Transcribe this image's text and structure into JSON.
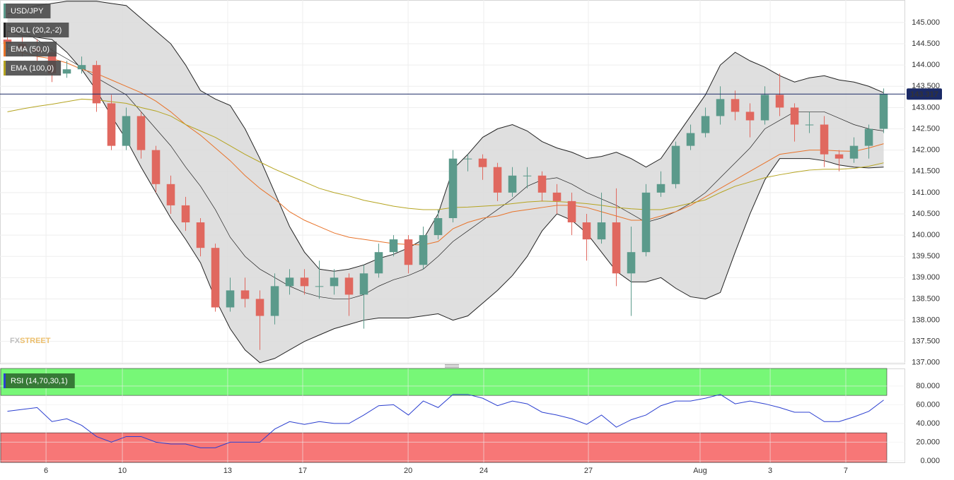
{
  "chart_data": [
    {
      "type": "candlestick",
      "name": "USD/JPY",
      "up_color": "#5b9a8b",
      "down_color": "#e0685f",
      "x": [
        0,
        1,
        2,
        3,
        4,
        5,
        6,
        7,
        8,
        9,
        10,
        11,
        12,
        13,
        14,
        15,
        16,
        17,
        18,
        19,
        20,
        21,
        22,
        23,
        24,
        25,
        26,
        27,
        28,
        29,
        30,
        31,
        32,
        33,
        34,
        35,
        36,
        37,
        38,
        39,
        40,
        41,
        42,
        43,
        44,
        45,
        46,
        47,
        48,
        49,
        50,
        51,
        52,
        53,
        54,
        55,
        56,
        57,
        58,
        59
      ],
      "open": [
        144.6,
        144.5,
        144.4,
        144.3,
        143.8,
        143.9,
        144.0,
        143.1,
        142.1,
        142.8,
        142.0,
        141.2,
        140.7,
        140.3,
        139.7,
        138.3,
        138.7,
        138.5,
        138.1,
        138.8,
        139.0,
        138.8,
        138.8,
        139.0,
        138.6,
        139.1,
        139.6,
        139.9,
        139.3,
        140.0,
        140.4,
        141.8,
        141.8,
        141.6,
        141.0,
        141.4,
        141.4,
        141.0,
        140.8,
        140.3,
        139.9,
        140.3,
        139.1,
        139.6,
        141.0,
        141.2,
        142.1,
        142.4,
        142.8,
        143.2,
        142.9,
        142.7,
        143.3,
        143.0,
        142.6,
        142.6,
        141.9,
        141.8,
        142.1,
        142.5
      ],
      "high": [
        144.8,
        144.7,
        144.6,
        144.4,
        144.1,
        144.2,
        144.1,
        143.3,
        143.0,
        142.9,
        142.1,
        141.4,
        140.9,
        140.4,
        139.8,
        139.0,
        139.0,
        138.7,
        139.1,
        139.2,
        139.2,
        139.4,
        139.2,
        139.1,
        139.3,
        139.8,
        140.0,
        140.0,
        140.2,
        140.6,
        142.0,
        141.9,
        141.9,
        141.7,
        141.6,
        141.6,
        141.5,
        141.2,
        141.0,
        140.5,
        141.0,
        141.1,
        140.2,
        141.2,
        141.5,
        142.2,
        142.6,
        143.0,
        143.5,
        143.4,
        143.1,
        143.5,
        143.8,
        143.1,
        142.9,
        142.8,
        142.0,
        142.3,
        142.6,
        143.45
      ],
      "low": [
        144.3,
        144.2,
        144.1,
        143.6,
        143.7,
        143.8,
        142.9,
        142.0,
        142.0,
        141.8,
        141.0,
        140.5,
        140.1,
        139.5,
        138.2,
        138.2,
        138.3,
        137.3,
        137.9,
        138.6,
        138.6,
        138.5,
        138.6,
        138.1,
        137.8,
        139.0,
        139.5,
        139.1,
        139.2,
        139.9,
        140.3,
        141.5,
        141.3,
        140.8,
        140.9,
        141.1,
        140.8,
        140.5,
        140.0,
        139.4,
        139.8,
        138.8,
        138.1,
        139.5,
        140.9,
        141.1,
        142.0,
        142.3,
        142.6,
        142.7,
        142.3,
        142.6,
        142.8,
        142.2,
        142.4,
        141.6,
        141.5,
        141.7,
        141.8,
        142.4
      ],
      "close": [
        144.5,
        144.4,
        144.3,
        143.8,
        143.9,
        144.0,
        143.1,
        142.1,
        142.8,
        142.0,
        141.2,
        140.7,
        140.3,
        139.7,
        138.3,
        138.7,
        138.5,
        138.1,
        138.8,
        139.0,
        138.8,
        138.8,
        139.0,
        138.6,
        139.1,
        139.6,
        139.9,
        139.3,
        140.0,
        140.4,
        141.8,
        141.8,
        141.6,
        141.0,
        141.4,
        141.4,
        141.0,
        140.8,
        140.3,
        139.9,
        140.3,
        139.1,
        139.6,
        141.0,
        141.2,
        142.1,
        142.4,
        142.8,
        143.2,
        142.9,
        142.7,
        143.3,
        143.0,
        142.6,
        142.6,
        141.9,
        141.8,
        142.1,
        142.5,
        143.317
      ],
      "indicators": [
        {
          "name": "BOLL (20,2,-2)",
          "color": "#222222",
          "fill": "#d9d9d9",
          "upper": [
            145.2,
            145.3,
            145.4,
            145.45,
            145.5,
            145.5,
            145.5,
            145.45,
            145.4,
            145.1,
            144.8,
            144.5,
            144.0,
            143.4,
            143.2,
            143.05,
            142.5,
            141.8,
            141.0,
            140.2,
            139.6,
            139.2,
            139.15,
            139.2,
            139.3,
            139.45,
            139.55,
            139.7,
            139.9,
            140.5,
            141.55,
            141.9,
            142.3,
            142.5,
            142.6,
            142.45,
            142.2,
            142.05,
            141.95,
            141.8,
            141.85,
            141.95,
            141.8,
            141.6,
            141.8,
            142.3,
            142.8,
            143.3,
            144.0,
            144.3,
            144.1,
            143.95,
            143.75,
            143.6,
            143.7,
            143.75,
            143.65,
            143.6,
            143.5,
            143.35
          ],
          "middle": [
            144.95,
            144.8,
            144.6,
            144.35,
            144.15,
            143.95,
            143.7,
            143.5,
            143.3,
            142.9,
            142.5,
            142.1,
            141.6,
            141.15,
            140.6,
            139.95,
            139.5,
            139.2,
            139.0,
            138.8,
            138.65,
            138.55,
            138.5,
            138.5,
            138.6,
            138.8,
            138.95,
            139.05,
            139.2,
            139.5,
            139.85,
            140.1,
            140.35,
            140.6,
            140.85,
            141.15,
            141.3,
            141.35,
            141.2,
            141.0,
            140.85,
            140.7,
            140.5,
            140.3,
            140.4,
            140.55,
            140.75,
            141.0,
            141.35,
            141.7,
            142.05,
            142.5,
            142.7,
            142.9,
            142.9,
            142.9,
            142.75,
            142.6,
            142.5,
            142.45
          ],
          "lower": [
            144.8,
            144.7,
            144.65,
            144.6,
            144.3,
            143.9,
            143.4,
            142.8,
            142.25,
            141.6,
            141.0,
            140.4,
            139.9,
            139.35,
            138.5,
            137.8,
            137.3,
            137.0,
            137.1,
            137.3,
            137.5,
            137.65,
            137.8,
            137.9,
            138.0,
            138.05,
            138.05,
            138.05,
            138.1,
            138.15,
            138.0,
            138.1,
            138.4,
            138.7,
            139.05,
            139.5,
            140.1,
            140.5,
            140.35,
            140.05,
            139.6,
            139.15,
            138.9,
            138.9,
            139.0,
            138.75,
            138.55,
            138.5,
            138.65,
            139.6,
            140.5,
            141.3,
            141.8,
            141.8,
            141.8,
            141.75,
            141.65,
            141.6,
            141.58,
            141.6
          ]
        },
        {
          "name": "EMA (50,0)",
          "color": "#e8732a",
          "values": [
            144.4,
            144.3,
            144.2,
            144.15,
            144.05,
            143.9,
            143.8,
            143.65,
            143.5,
            143.35,
            143.15,
            142.9,
            142.6,
            142.35,
            142.05,
            141.75,
            141.4,
            141.1,
            140.85,
            140.55,
            140.35,
            140.2,
            140.05,
            139.95,
            139.9,
            139.85,
            139.8,
            139.78,
            139.77,
            139.85,
            140.15,
            140.3,
            140.4,
            140.45,
            140.55,
            140.6,
            140.65,
            140.7,
            140.7,
            140.65,
            140.55,
            140.45,
            140.35,
            140.35,
            140.45,
            140.55,
            140.7,
            140.9,
            141.1,
            141.3,
            141.5,
            141.7,
            141.9,
            141.95,
            142.0,
            142.0,
            141.98,
            141.97,
            142.05,
            142.15
          ]
        },
        {
          "name": "EMA (100,0)",
          "color": "#b5a420",
          "values": [
            142.9,
            142.97,
            143.03,
            143.08,
            143.14,
            143.2,
            143.18,
            143.14,
            143.1,
            143.0,
            142.92,
            142.8,
            142.6,
            142.45,
            142.3,
            142.1,
            141.9,
            141.72,
            141.55,
            141.4,
            141.25,
            141.1,
            141.0,
            140.92,
            140.82,
            140.75,
            140.68,
            140.63,
            140.6,
            140.6,
            140.65,
            140.66,
            140.68,
            140.7,
            140.74,
            140.78,
            140.8,
            140.79,
            140.77,
            140.74,
            140.7,
            140.65,
            140.62,
            140.6,
            140.6,
            140.67,
            140.75,
            140.83,
            141.0,
            141.15,
            141.25,
            141.35,
            141.42,
            141.48,
            141.53,
            141.55,
            141.55,
            141.57,
            141.62,
            141.7
          ]
        }
      ],
      "xlim": [
        -0.5,
        60.45
      ],
      "ylim": [
        136.98,
        145.53
      ],
      "yticks": [
        {
          "value": 137,
          "label": "137.000"
        },
        {
          "value": 137.5,
          "label": "137.500"
        },
        {
          "value": 138,
          "label": "138.000"
        },
        {
          "value": 138.5,
          "label": "138.500"
        },
        {
          "value": 139,
          "label": "139.000"
        },
        {
          "value": 139.5,
          "label": "139.500"
        },
        {
          "value": 140,
          "label": "140.000"
        },
        {
          "value": 140.5,
          "label": "140.500"
        },
        {
          "value": 141,
          "label": "141.000"
        },
        {
          "value": 141.5,
          "label": "141.500"
        },
        {
          "value": 142,
          "label": "142.000"
        },
        {
          "value": 142.5,
          "label": "142.500"
        },
        {
          "value": 143,
          "label": "143.000"
        },
        {
          "value": 143.5,
          "label": "143.500"
        },
        {
          "value": 144,
          "label": "144.000"
        },
        {
          "value": 144.5,
          "label": "144.500"
        },
        {
          "value": 145,
          "label": "145.000"
        }
      ],
      "grid": true,
      "watermark": [
        "FX",
        "STREET"
      ]
    },
    {
      "type": "line",
      "series": [
        {
          "name": "RSI (14,70,30,1)",
          "color": "#2b3fd0",
          "values": [
            53,
            55,
            57,
            42,
            45,
            38,
            26,
            20,
            26,
            26,
            20,
            18,
            18,
            14,
            14,
            20,
            20,
            20,
            34,
            42,
            39,
            42,
            40,
            40,
            49,
            59,
            60,
            49,
            64,
            57,
            71,
            71,
            67,
            59,
            64,
            61,
            52,
            49,
            45,
            39,
            49,
            36,
            44,
            49,
            59,
            64,
            64,
            67,
            71,
            61,
            64,
            61,
            57,
            52,
            52,
            42,
            42,
            47,
            53,
            65
          ]
        }
      ],
      "zones": [
        {
          "from": 70,
          "color": "#77f777"
        },
        {
          "to": 30,
          "color": "#f77777"
        }
      ],
      "xlim": [
        -0.5,
        60.45
      ],
      "ylim": [
        -1.6,
        98.8
      ],
      "yticks": [
        {
          "value": 0,
          "label": "0.000"
        },
        {
          "value": 20,
          "label": "20.000"
        },
        {
          "value": 40,
          "label": "40.000"
        },
        {
          "value": 60,
          "label": "60.000"
        },
        {
          "value": 80,
          "label": "80.000"
        }
      ],
      "xticks": [
        {
          "value": 2.6,
          "label": "6"
        },
        {
          "value": 7.74,
          "label": "10"
        },
        {
          "value": 14.83,
          "label": "13"
        },
        {
          "value": 19.88,
          "label": "17"
        },
        {
          "value": 26.98,
          "label": "20"
        },
        {
          "value": 32.07,
          "label": "24"
        },
        {
          "value": 39.12,
          "label": "27"
        },
        {
          "value": 46.64,
          "label": "Aug"
        },
        {
          "value": 51.36,
          "label": "3"
        },
        {
          "value": 56.45,
          "label": "7"
        }
      ],
      "grid": true
    }
  ]
}
